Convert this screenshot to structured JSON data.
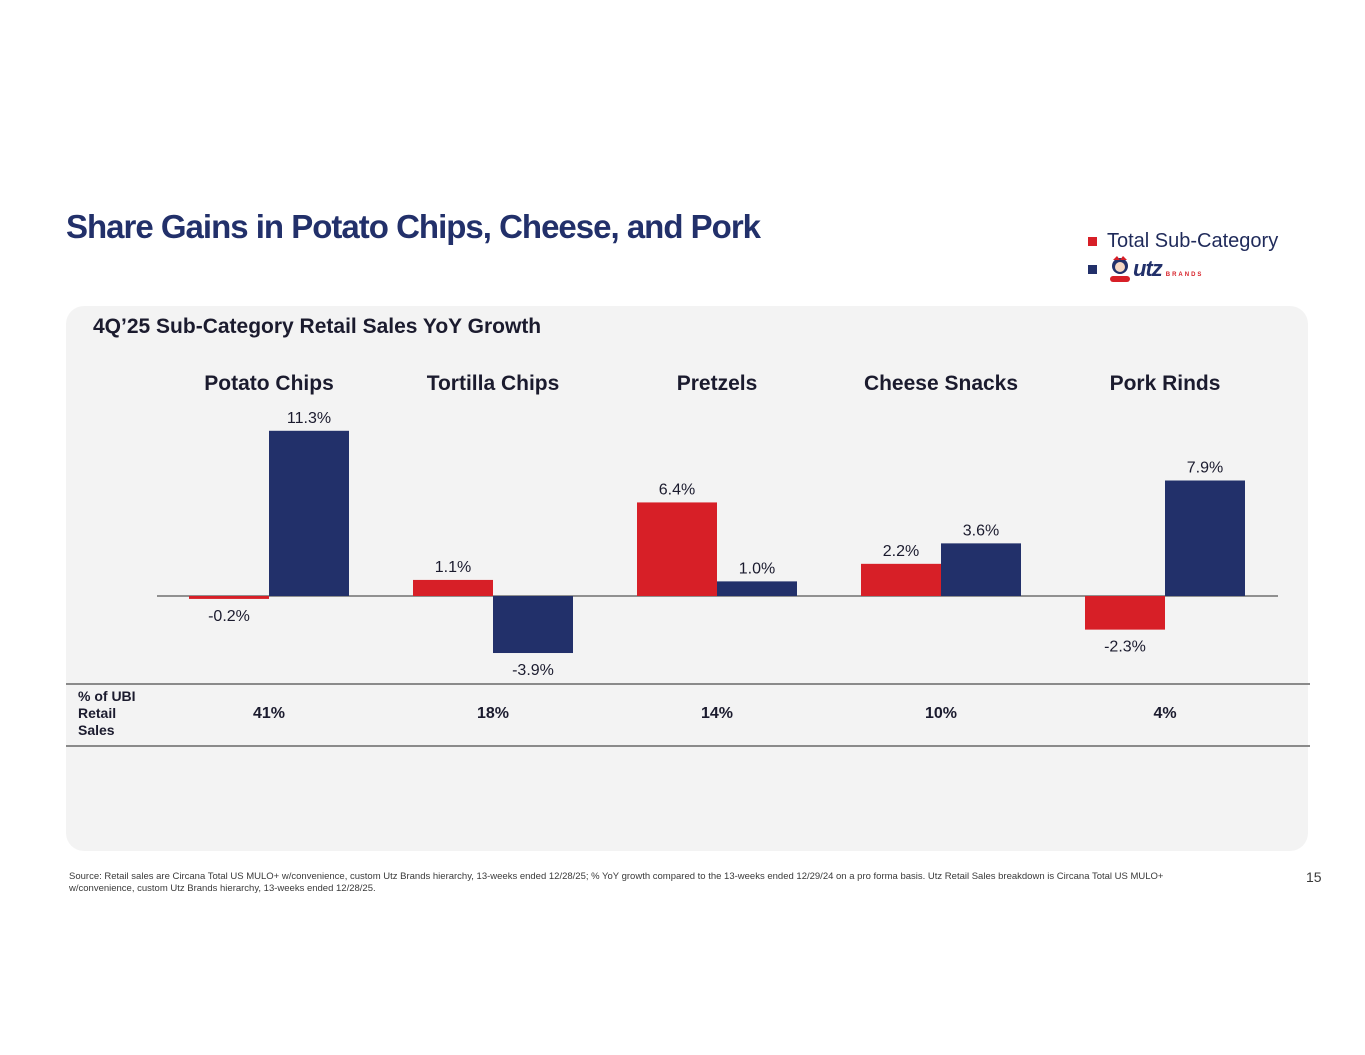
{
  "title": "Share Gains in Potato Chips, Cheese, and Pork",
  "legend": {
    "total_label": "Total Sub-Category",
    "utz_label": "utz",
    "utz_sub": "BRANDS",
    "total_color": "#d71f27",
    "utz_color": "#22306a"
  },
  "panel": {
    "title": "4Q’25 Sub-Category Retail Sales YoY Growth",
    "share_label": "% of UBI Retail Sales"
  },
  "chart_data": {
    "type": "bar",
    "title": "4Q’25 Sub-Category Retail Sales YoY Growth",
    "categories": [
      "Potato Chips",
      "Tortilla Chips",
      "Pretzels",
      "Cheese Snacks",
      "Pork Rinds"
    ],
    "series": [
      {
        "name": "Total Sub-Category",
        "color": "#d71f27",
        "values": [
          -0.2,
          1.1,
          6.4,
          2.2,
          -2.3
        ],
        "labels": [
          "-0.2%",
          "1.1%",
          "6.4%",
          "2.2%",
          "-2.3%"
        ]
      },
      {
        "name": "Utz Brands",
        "color": "#22306a",
        "values": [
          11.3,
          -3.9,
          1.0,
          3.6,
          7.9
        ],
        "labels": [
          "11.3%",
          "-3.9%",
          "1.0%",
          "3.6%",
          "7.9%"
        ]
      }
    ],
    "unit": "%",
    "share_of_ubi_retail_sales": [
      "41%",
      "18%",
      "14%",
      "10%",
      "4%"
    ]
  },
  "source": "Source: Retail sales are Circana Total US MULO+ w/convenience, custom Utz Brands hierarchy, 13-weeks ended 12/28/25; % YoY growth compared to the 13-weeks ended 12/29/24 on a pro forma basis. Utz Retail Sales breakdown is Circana Total US MULO+ w/convenience, custom Utz Brands hierarchy, 13-weeks ended 12/28/25.",
  "page_number": "15"
}
